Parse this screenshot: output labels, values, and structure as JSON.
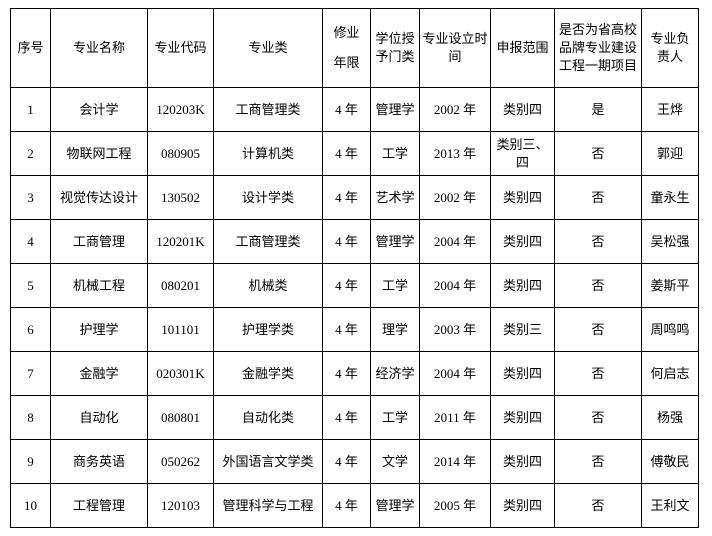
{
  "table": {
    "header": [
      "序号",
      "专业名称",
      "专业代码",
      "专业类",
      "修业年限",
      "学位授予门类",
      "专业设立时间",
      "申报范围",
      "是否为省高校品牌专业建设工程一期项目",
      "专业负责人"
    ],
    "rows": [
      [
        "1",
        "会计学",
        "120203K",
        "工商管理类",
        "4 年",
        "管理学",
        "2002 年",
        "类别四",
        "是",
        "王烨"
      ],
      [
        "2",
        "物联网工程",
        "080905",
        "计算机类",
        "4 年",
        "工学",
        "2013 年",
        "类别三、四",
        "否",
        "郭迎"
      ],
      [
        "3",
        "视觉传达设计",
        "130502",
        "设计学类",
        "4 年",
        "艺术学",
        "2002 年",
        "类别四",
        "否",
        "童永生"
      ],
      [
        "4",
        "工商管理",
        "120201K",
        "工商管理类",
        "4 年",
        "管理学",
        "2004 年",
        "类别四",
        "否",
        "吴松强"
      ],
      [
        "5",
        "机械工程",
        "080201",
        "机械类",
        "4 年",
        "工学",
        "2004 年",
        "类别四",
        "否",
        "姜斯平"
      ],
      [
        "6",
        "护理学",
        "101101",
        "护理学类",
        "4 年",
        "理学",
        "2003 年",
        "类别三",
        "否",
        "周鸣鸣"
      ],
      [
        "7",
        "金融学",
        "020301K",
        "金融学类",
        "4 年",
        "经济学",
        "2004 年",
        "类别四",
        "否",
        "何启志"
      ],
      [
        "8",
        "自动化",
        "080801",
        "自动化类",
        "4 年",
        "工学",
        "2011 年",
        "类别四",
        "否",
        "杨强"
      ],
      [
        "9",
        "商务英语",
        "050262",
        "外国语言文学类",
        "4 年",
        "文学",
        "2014 年",
        "类别四",
        "否",
        "傅敬民"
      ],
      [
        "10",
        "工程管理",
        "120103",
        "管理科学与工程",
        "4 年",
        "管理学",
        "2005 年",
        "类别四",
        "否",
        "王利文"
      ]
    ]
  }
}
